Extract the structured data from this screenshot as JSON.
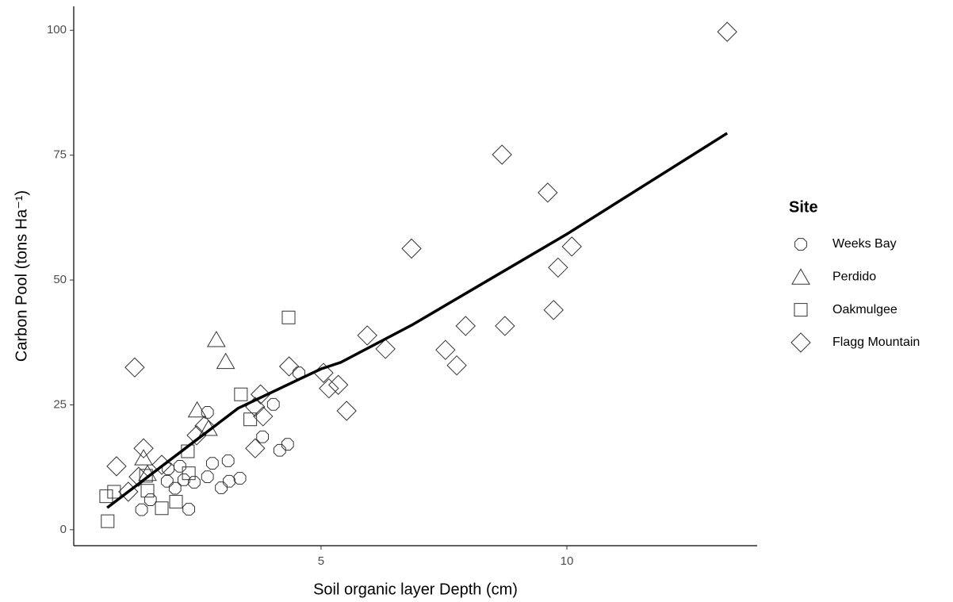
{
  "chart_data": {
    "type": "scatter",
    "x_label": "Soil organic layer Depth (cm)",
    "y_label": "Carbon Pool (tons Ha⁻¹)",
    "legend_title": "Site",
    "legend_position": "right",
    "grid": false,
    "xlim": [
      -0.03,
      13.87
    ],
    "xticks": [
      5,
      10
    ],
    "ylim": [
      -3.2,
      104.8
    ],
    "yticks": [
      0,
      25,
      50,
      75,
      100
    ],
    "series": [
      {
        "name": "Weeks Bay",
        "shape": "circle",
        "color": "#333333",
        "x": [
          4.55,
          4.03,
          3.81,
          4.32,
          4.16,
          3.35,
          3.13,
          2.97,
          3.11,
          2.79,
          2.69,
          2.42,
          2.21,
          1.87,
          2.03,
          1.35,
          1.53,
          2.31,
          1.89,
          2.69,
          2.13
        ],
        "values": [
          31.4,
          25.1,
          18.6,
          17.1,
          15.9,
          10.3,
          9.7,
          8.4,
          13.8,
          13.3,
          10.6,
          9.5,
          10.0,
          9.7,
          8.3,
          4.0,
          6.0,
          4.1,
          12.2,
          23.5,
          12.7
        ]
      },
      {
        "name": "Perdido",
        "shape": "triangle",
        "color": "#333333",
        "x": [
          2.87,
          3.06,
          2.48,
          2.71,
          1.39,
          1.47
        ],
        "values": [
          38.1,
          33.7,
          24.0,
          20.3,
          14.4,
          11.3
        ]
      },
      {
        "name": "Oakmulgee",
        "shape": "square",
        "color": "#333333",
        "x": [
          4.34,
          3.37,
          3.56,
          2.29,
          2.31,
          1.44,
          1.47,
          0.79,
          0.63,
          2.05,
          1.76,
          0.66
        ],
        "values": [
          42.5,
          27.1,
          22.1,
          15.7,
          11.3,
          10.8,
          7.8,
          7.6,
          6.7,
          5.6,
          4.3,
          1.7
        ]
      },
      {
        "name": "Flagg Mountain",
        "shape": "diamond",
        "color": "#333333",
        "x": [
          13.26,
          8.68,
          9.61,
          6.84,
          10.1,
          9.82,
          9.73,
          7.94,
          8.74,
          5.94,
          6.31,
          7.53,
          7.76,
          4.35,
          5.05,
          5.16,
          5.35,
          5.52,
          1.21,
          3.77,
          3.66,
          3.82,
          3.66,
          1.39,
          0.84,
          1.76,
          2.47,
          2.63,
          1.29,
          1.08
        ],
        "values": [
          99.7,
          75.1,
          67.5,
          56.3,
          56.7,
          52.5,
          44.0,
          40.8,
          40.8,
          38.9,
          36.2,
          36.0,
          32.9,
          32.7,
          31.4,
          28.3,
          29.0,
          23.8,
          32.5,
          27.1,
          24.6,
          22.7,
          16.3,
          16.3,
          12.7,
          13.0,
          18.9,
          20.8,
          10.6,
          7.6
        ]
      }
    ],
    "fit": {
      "color": "#000000",
      "x": [
        0.65,
        3.31,
        5.0,
        5.4,
        6.85,
        10.0,
        13.26
      ],
      "y": [
        4.4,
        24.3,
        32.2,
        33.5,
        41.0,
        59.2,
        79.4
      ]
    }
  }
}
